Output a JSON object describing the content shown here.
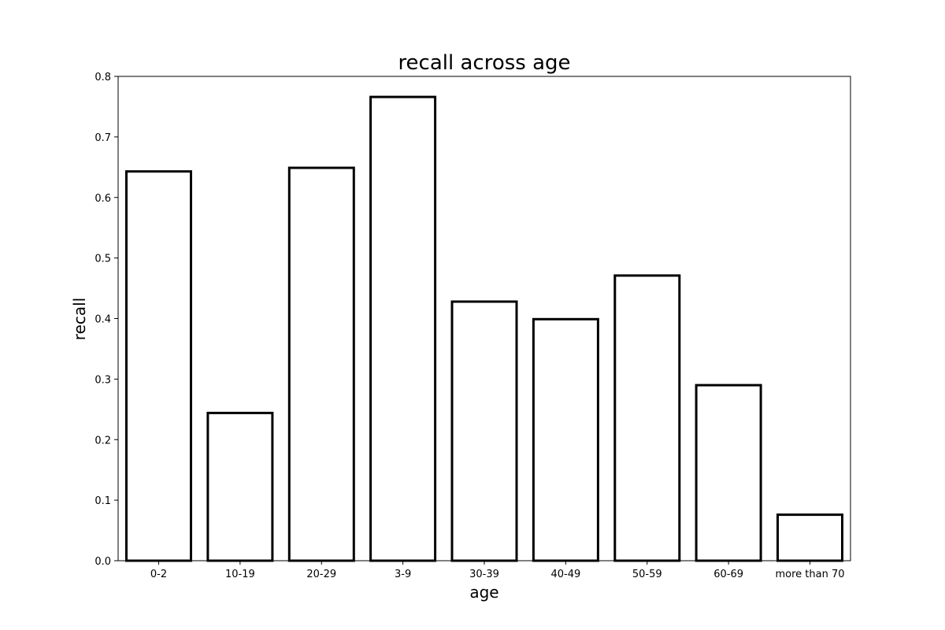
{
  "chart_data": {
    "type": "bar",
    "title": "recall across age",
    "xlabel": "age",
    "ylabel": "recall",
    "categories": [
      "0-2",
      "10-19",
      "20-29",
      "3-9",
      "30-39",
      "40-49",
      "50-59",
      "60-69",
      "more than 70"
    ],
    "values": [
      0.643,
      0.244,
      0.649,
      0.766,
      0.428,
      0.399,
      0.471,
      0.29,
      0.076
    ],
    "ylim": [
      0,
      0.8
    ],
    "yticks": [
      0.0,
      0.1,
      0.2,
      0.3,
      0.4,
      0.5,
      0.6,
      0.7,
      0.8
    ],
    "ytick_labels": [
      "0.0",
      "0.1",
      "0.2",
      "0.3",
      "0.4",
      "0.5",
      "0.6",
      "0.7",
      "0.8"
    ],
    "grid": false,
    "bar_fill": "#ffffff",
    "bar_edge": "#000000"
  }
}
